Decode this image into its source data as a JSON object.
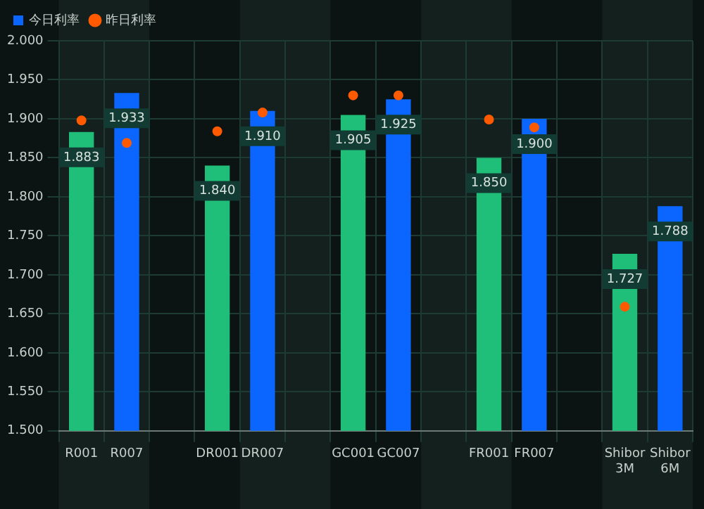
{
  "chart_data": {
    "type": "bar",
    "categories": [
      "R001",
      "R007",
      null,
      "DR001",
      "DR007",
      null,
      "GC001",
      "GC007",
      null,
      "FR001",
      "FR007",
      null,
      "Shibor 3M",
      "Shibor 6M"
    ],
    "series": [
      {
        "name": "今日利率",
        "color": "#0a66ff",
        "colors": [
          "#1fbf7a",
          "#0a66ff",
          null,
          "#1fbf7a",
          "#0a66ff",
          null,
          "#1fbf7a",
          "#0a66ff",
          null,
          "#1fbf7a",
          "#0a66ff",
          null,
          "#1fbf7a",
          "#0a66ff"
        ],
        "values": [
          1.883,
          1.933,
          null,
          1.84,
          1.91,
          null,
          1.905,
          1.925,
          null,
          1.85,
          1.9,
          null,
          1.727,
          1.788
        ],
        "value_labels": [
          "1.883",
          "1.933",
          null,
          "1.840",
          "1.910",
          null,
          "1.905",
          "1.925",
          null,
          "1.850",
          "1.900",
          null,
          "1.727",
          "1.788"
        ]
      },
      {
        "name": "昨日利率",
        "type": "scatter",
        "color": "#ff5a00",
        "marker": "circle",
        "values": [
          1.898,
          1.869,
          null,
          1.884,
          1.908,
          null,
          1.93,
          1.93,
          null,
          1.899,
          1.889,
          null,
          1.659,
          null
        ]
      }
    ],
    "ylim": [
      1.5,
      2.0
    ],
    "yticks": [
      {
        "value": 1.5,
        "label": "1.500"
      },
      {
        "value": 1.55,
        "label": "1.550"
      },
      {
        "value": 1.6,
        "label": "1.600"
      },
      {
        "value": 1.65,
        "label": "1.650"
      },
      {
        "value": 1.7,
        "label": "1.700"
      },
      {
        "value": 1.75,
        "label": "1.750"
      },
      {
        "value": 1.8,
        "label": "1.800"
      },
      {
        "value": 1.85,
        "label": "1.850"
      },
      {
        "value": 1.9,
        "label": "1.900"
      },
      {
        "value": 1.95,
        "label": "1.950"
      },
      {
        "value": 2,
        "label": "2.000"
      }
    ],
    "grid": true,
    "legend": "top left"
  }
}
